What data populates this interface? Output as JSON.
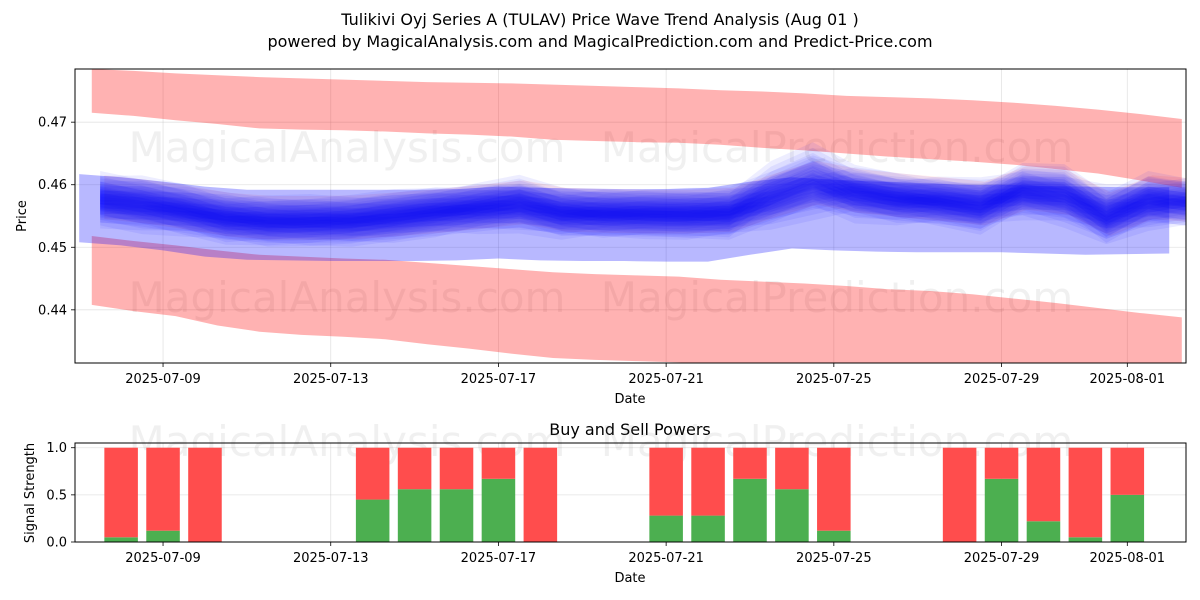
{
  "header": {
    "title_line1": "Tulikivi Oyj Series A (TULAV) Price Wave Trend Analysis (Aug 01 )",
    "title_line2": "powered by MagicalAnalysis.com and MagicalPrediction.com and Predict-Price.com"
  },
  "watermarks": [
    "MagicalAnalysis.com",
    "MagicalPrediction.com"
  ],
  "colors": {
    "upper_lower_band": "#ff0000",
    "wave_bands": "#0000ff",
    "buy": "#4caf50",
    "sell": "#ff4d4d"
  },
  "chart_data": [
    {
      "type": "area",
      "title": "",
      "xlabel": "Date",
      "ylabel": "Price",
      "x_tick_labels": [
        "2025-07-09",
        "2025-07-13",
        "2025-07-17",
        "2025-07-21",
        "2025-07-25",
        "2025-07-29",
        "2025-08-01"
      ],
      "x_tick_dates": [
        "2025-07-09",
        "2025-07-13",
        "2025-07-17",
        "2025-07-21",
        "2025-07-25",
        "2025-07-29",
        "2025-08-01"
      ],
      "y_ticks": [
        0.44,
        0.45,
        0.46,
        0.47
      ],
      "xlim": [
        "2025-07-06.9",
        "2025-08-02.4"
      ],
      "ylim": [
        0.4315,
        0.4785
      ],
      "grid": true,
      "dates": [
        "2025-07-07",
        "2025-07-08",
        "2025-07-09",
        "2025-07-10",
        "2025-07-11",
        "2025-07-12",
        "2025-07-13",
        "2025-07-14",
        "2025-07-15",
        "2025-07-16",
        "2025-07-17",
        "2025-07-18",
        "2025-07-19",
        "2025-07-20",
        "2025-07-21",
        "2025-07-22",
        "2025-07-23",
        "2025-07-24",
        "2025-07-25",
        "2025-07-26",
        "2025-07-27",
        "2025-07-28",
        "2025-07-29",
        "2025-07-30",
        "2025-07-31",
        "2025-08-01",
        "2025-08-02"
      ],
      "upper_band": {
        "upper": [
          0.4785,
          0.4782,
          0.4778,
          0.4775,
          0.4772,
          0.477,
          0.4768,
          0.4766,
          0.4764,
          0.4763,
          0.4762,
          0.476,
          0.4758,
          0.4756,
          0.4754,
          0.4751,
          0.4749,
          0.4746,
          0.4742,
          0.474,
          0.4738,
          0.4735,
          0.4731,
          0.4726,
          0.472,
          0.4713,
          0.4705
        ],
        "lower": [
          0.4715,
          0.471,
          0.4703,
          0.4697,
          0.469,
          0.4688,
          0.4687,
          0.4685,
          0.4682,
          0.468,
          0.4677,
          0.4672,
          0.467,
          0.4668,
          0.4667,
          0.4664,
          0.4659,
          0.4655,
          0.465,
          0.4645,
          0.4641,
          0.4637,
          0.4632,
          0.4625,
          0.4618,
          0.4607,
          0.4595
        ]
      },
      "lower_band": {
        "upper": [
          0.4518,
          0.451,
          0.4503,
          0.4495,
          0.4488,
          0.4485,
          0.4482,
          0.448,
          0.4475,
          0.447,
          0.4465,
          0.446,
          0.4457,
          0.4455,
          0.4453,
          0.4448,
          0.4445,
          0.4442,
          0.4438,
          0.4433,
          0.443,
          0.4425,
          0.4418,
          0.4411,
          0.4403,
          0.4395,
          0.4388
        ],
        "lower": [
          0.4408,
          0.4398,
          0.439,
          0.4375,
          0.4365,
          0.436,
          0.4357,
          0.4353,
          0.4345,
          0.4338,
          0.433,
          0.4323,
          0.432,
          0.4318,
          0.4316,
          0.4313,
          0.431,
          0.4307,
          0.4303,
          0.4298,
          0.4295,
          0.429,
          0.4285,
          0.428,
          0.4275,
          0.427,
          0.4265
        ]
      },
      "outer_wave": {
        "upper": [
          0.4617,
          0.4612,
          0.4605,
          0.4597,
          0.4592,
          0.4592,
          0.4592,
          0.4592,
          0.4592,
          0.4593,
          0.4597,
          0.4595,
          0.4594,
          0.4593,
          0.4593,
          0.4595,
          0.4605,
          0.4612,
          0.4608,
          0.4605,
          0.4603,
          0.46,
          0.46,
          0.4598,
          0.4597,
          0.4596,
          0.4596
        ],
        "lower": [
          0.4508,
          0.4503,
          0.4495,
          0.4485,
          0.448,
          0.4479,
          0.4478,
          0.4478,
          0.4478,
          0.4479,
          0.4482,
          0.4479,
          0.4478,
          0.4478,
          0.4477,
          0.4477,
          0.4488,
          0.4498,
          0.4495,
          0.4493,
          0.4492,
          0.4492,
          0.4492,
          0.449,
          0.4488,
          0.4489,
          0.449
        ]
      },
      "wave_center": [
        0.4575,
        0.4568,
        0.4558,
        0.4547,
        0.4542,
        0.4542,
        0.4543,
        0.4548,
        0.4553,
        0.456,
        0.4567,
        0.4555,
        0.4553,
        0.4552,
        0.4552,
        0.4555,
        0.4578,
        0.4598,
        0.4585,
        0.4578,
        0.4572,
        0.4565,
        0.459,
        0.4582,
        0.4548,
        0.4575,
        0.457
      ],
      "wave_variants": [
        [
          0.0,
          0.0,
          0.0,
          0.0,
          0.0,
          0.0,
          0.0,
          0.0,
          0.0,
          0.0,
          0.0,
          0.0,
          0.0,
          0.0,
          0.0,
          0.0,
          0.0,
          0.0,
          0.0,
          0.0,
          0.0,
          0.0,
          0.0,
          0.0,
          0.0,
          0.0,
          0.0
        ],
        [
          0.0012,
          0.0005,
          -0.0003,
          -0.0008,
          -0.0004,
          0.0,
          0.0006,
          0.001,
          0.0007,
          0.0003,
          0.0008,
          -0.0002,
          0.0001,
          0.0003,
          0.0002,
          -0.0004,
          0.0025,
          0.0035,
          0.0012,
          0.0005,
          -0.0003,
          -0.001,
          0.0006,
          0.0012,
          -0.0006,
          0.0004,
          -0.0002
        ],
        [
          -0.001,
          -0.0006,
          0.0004,
          0.0006,
          0.0002,
          -0.0004,
          -0.0007,
          -0.0003,
          0.0004,
          0.0006,
          -0.0004,
          0.0004,
          0.0,
          -0.0004,
          -0.0005,
          0.0003,
          -0.0015,
          -0.002,
          0.0008,
          0.0006,
          0.0004,
          0.0008,
          -0.0012,
          -0.0004,
          0.0018,
          -0.0008,
          0.0006
        ],
        [
          0.0004,
          0.0012,
          0.0008,
          -0.0004,
          0.0006,
          0.0008,
          0.0002,
          -0.0006,
          -0.0002,
          0.0008,
          0.0014,
          0.0006,
          -0.0003,
          0.0005,
          0.0008,
          0.0006,
          0.0008,
          0.0014,
          0.0006,
          -0.0004,
          0.0002,
          -0.0004,
          0.001,
          0.0016,
          0.0004,
          0.0012,
          0.0004
        ],
        [
          -0.0005,
          -0.0012,
          -0.0006,
          0.0003,
          -0.0006,
          -0.0005,
          -0.0002,
          0.0004,
          0.0008,
          -0.0004,
          -0.001,
          -0.0008,
          0.0004,
          0.0002,
          -0.0002,
          -0.0008,
          -0.0004,
          0.0004,
          -0.0012,
          -0.0008,
          0.0006,
          0.0012,
          -0.0004,
          -0.0016,
          -0.0008,
          -0.0014,
          0.0002
        ]
      ],
      "wave_half_widths": [
        0.0035,
        0.0026,
        0.0018,
        0.0011,
        0.0006
      ]
    },
    {
      "type": "bar",
      "title": "Buy and Sell Powers",
      "xlabel": "Date",
      "ylabel": "Signal Strength",
      "x_tick_labels": [
        "2025-07-09",
        "2025-07-13",
        "2025-07-17",
        "2025-07-21",
        "2025-07-25",
        "2025-07-29",
        "2025-08-01"
      ],
      "x_tick_dates": [
        "2025-07-09",
        "2025-07-13",
        "2025-07-17",
        "2025-07-21",
        "2025-07-25",
        "2025-07-29",
        "2025-08-01"
      ],
      "y_tick_labels": [
        "0.0",
        "0.5",
        "1.0"
      ],
      "y_ticks": [
        0.0,
        0.5,
        1.0
      ],
      "xlim": [
        "2025-07-06.9",
        "2025-08-02.4"
      ],
      "ylim": [
        0.0,
        1.05
      ],
      "grid": true,
      "dates": [
        "2025-07-08",
        "2025-07-09",
        "2025-07-10",
        "2025-07-14",
        "2025-07-15",
        "2025-07-16",
        "2025-07-17",
        "2025-07-18",
        "2025-07-21",
        "2025-07-22",
        "2025-07-23",
        "2025-07-24",
        "2025-07-25",
        "2025-07-28",
        "2025-07-29",
        "2025-07-30",
        "2025-07-31",
        "2025-08-01"
      ],
      "series": [
        {
          "name": "Buy",
          "values": [
            0.05,
            0.12,
            0.0,
            0.45,
            0.56,
            0.56,
            0.67,
            0.0,
            0.28,
            0.28,
            0.67,
            0.56,
            0.12,
            0.0,
            0.67,
            0.22,
            0.05,
            0.5
          ]
        },
        {
          "name": "Sell",
          "values": [
            0.95,
            0.88,
            1.0,
            0.55,
            0.44,
            0.44,
            0.33,
            1.0,
            0.72,
            0.72,
            0.33,
            0.44,
            0.88,
            1.0,
            0.33,
            0.78,
            0.95,
            0.5
          ]
        }
      ]
    }
  ]
}
